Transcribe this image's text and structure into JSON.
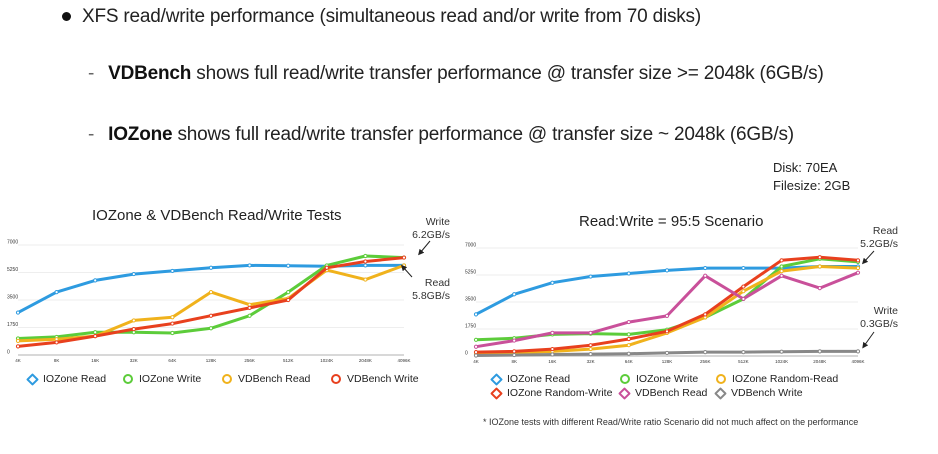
{
  "slide": {
    "main_bullet": "XFS read/write performance (simultaneous read and/or write from 70 disks)",
    "sub_bullets": [
      {
        "dash": "-",
        "bold": "VDBench",
        "text": " shows full read/write transfer performance @ transfer size >= 2048k (6GB/s)"
      },
      {
        "dash": "-",
        "bold": "IOZone",
        "text": " shows full read/write transfer performance @ transfer size ~ 2048k (6GB/s)"
      }
    ],
    "disk_info": [
      "Disk: 70EA",
      "Filesize: 2GB"
    ],
    "footnote": "* IOZone tests with different Read/Write ratio Scenario did not much affect on the performance"
  },
  "chart_data": [
    {
      "type": "line",
      "title": "IOZone & VDBench Read/Write Tests",
      "xlabel": "",
      "ylabel": "",
      "categories": [
        "4K",
        "8K",
        "16K",
        "32K",
        "64K",
        "128K",
        "256K",
        "512K",
        "1024K",
        "2048K",
        "4096K"
      ],
      "ylim": [
        0,
        7000
      ],
      "yticks": [
        "0",
        "1750",
        "3500",
        "5250",
        "7000"
      ],
      "grid": true,
      "legend_position": "bottom",
      "annotations": [
        {
          "lines": [
            "Write",
            "6.2GB/s"
          ]
        },
        {
          "lines": [
            "Read",
            "5.8GB/s"
          ]
        }
      ],
      "series": [
        {
          "name": "IOZone Read",
          "color": "#2e9be0",
          "values": [
            2700,
            4000,
            4750,
            5150,
            5350,
            5550,
            5700,
            5680,
            5650,
            5700,
            5700
          ]
        },
        {
          "name": "IOZone Write",
          "color": "#5ccc3a",
          "values": [
            1050,
            1150,
            1450,
            1450,
            1400,
            1700,
            2500,
            4000,
            5700,
            6300,
            6200
          ]
        },
        {
          "name": "VDBench Read",
          "color": "#f0b21c",
          "values": [
            900,
            1000,
            1200,
            2200,
            2400,
            4000,
            3200,
            3600,
            5400,
            4800,
            5700
          ]
        },
        {
          "name": "VDBench Write",
          "color": "#e8401e",
          "values": [
            550,
            800,
            1200,
            1650,
            2000,
            2500,
            3000,
            3500,
            5550,
            5950,
            6200
          ]
        }
      ]
    },
    {
      "type": "line",
      "title": "Read:Write = 95:5 Scenario",
      "xlabel": "",
      "ylabel": "",
      "categories": [
        "4K",
        "8K",
        "16K",
        "32K",
        "64K",
        "128K",
        "256K",
        "512K",
        "1024K",
        "2048K",
        "4096K"
      ],
      "ylim": [
        0,
        7000
      ],
      "yticks": [
        "0",
        "1750",
        "3500",
        "5250",
        "7000"
      ],
      "grid": true,
      "legend_position": "bottom",
      "annotations": [
        {
          "lines": [
            "Read",
            "5.2GB/s"
          ]
        },
        {
          "lines": [
            "Write",
            "0.3GB/s"
          ]
        }
      ],
      "series": [
        {
          "name": "IOZone Read",
          "color": "#2e9be0",
          "values": [
            2700,
            4000,
            4750,
            5150,
            5350,
            5550,
            5700,
            5700,
            5700,
            5800,
            5800
          ]
        },
        {
          "name": "IOZone Write",
          "color": "#5ccc3a",
          "values": [
            1050,
            1150,
            1400,
            1450,
            1400,
            1700,
            2500,
            3700,
            5800,
            6300,
            6100
          ]
        },
        {
          "name": "IOZone Random-Read",
          "color": "#f0b21c",
          "values": [
            100,
            200,
            300,
            450,
            700,
            1500,
            2500,
            4200,
            5500,
            5800,
            5700
          ]
        },
        {
          "name": "IOZone Random-Write",
          "color": "#e8401e",
          "values": [
            250,
            300,
            450,
            700,
            1100,
            1600,
            2700,
            4500,
            6200,
            6400,
            6200
          ]
        },
        {
          "name": "VDBench Read",
          "color": "#c9509a",
          "values": [
            600,
            1000,
            1500,
            1500,
            2200,
            2600,
            5200,
            3700,
            5200,
            4400,
            5400
          ]
        },
        {
          "name": "VDBench Write",
          "color": "#888888",
          "values": [
            30,
            60,
            100,
            120,
            150,
            200,
            250,
            250,
            280,
            300,
            300
          ]
        }
      ]
    }
  ]
}
